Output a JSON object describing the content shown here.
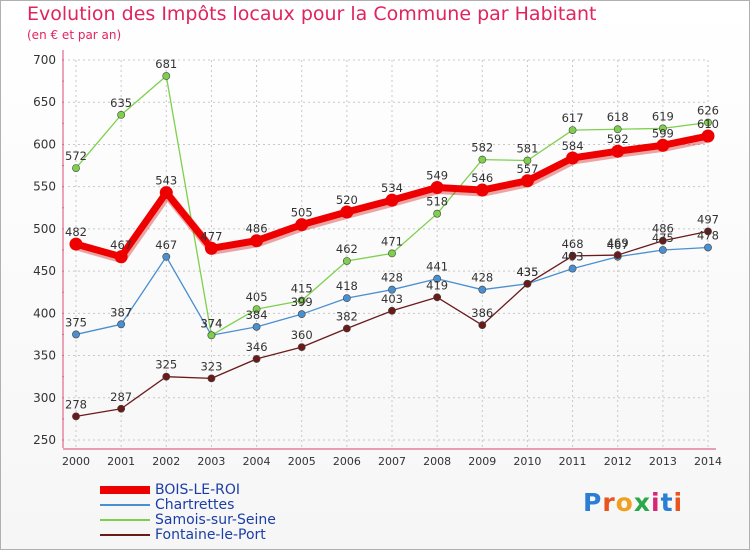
{
  "title": "Evolution des Impôts locaux pour la Commune par Habitant",
  "subtitle": "(en € et par an)",
  "brand": "Proxiti",
  "colors": {
    "title": "#e0245e",
    "grid": "#c8c8c8",
    "axis": "#e06a8a",
    "tick_text": "#333333",
    "label_text": "#333333",
    "legend_text": "#1a3ea6"
  },
  "chart_data": {
    "type": "line",
    "title": "Evolution des Impôts locaux pour la Commune par Habitant",
    "subtitle": "(en € et par an)",
    "xlabel": "",
    "ylabel": "",
    "ylim": [
      250,
      700
    ],
    "yticks": [
      250,
      300,
      350,
      400,
      450,
      500,
      550,
      600,
      650,
      700
    ],
    "categories": [
      "2000",
      "2001",
      "2002",
      "2003",
      "2004",
      "2005",
      "2006",
      "2007",
      "2008",
      "2009",
      "2010",
      "2011",
      "2012",
      "2013",
      "2014"
    ],
    "grid": true,
    "legend_position": "bottom-left",
    "series": [
      {
        "name": "BOIS-LE-ROI",
        "color": "#ee0000",
        "emphasis": true,
        "values": [
          482,
          467,
          543,
          477,
          486,
          505,
          520,
          534,
          549,
          546,
          557,
          584,
          592,
          599,
          610
        ],
        "labels": [
          "482",
          "467",
          "543",
          "477",
          "486",
          "505",
          "520",
          "534",
          "549",
          "546",
          "557",
          "584",
          "592",
          "599",
          "610"
        ]
      },
      {
        "name": "Chartrettes",
        "color": "#4a8fd0",
        "emphasis": false,
        "values": [
          375,
          387,
          467,
          374,
          384,
          399,
          418,
          428,
          441,
          428,
          435,
          453,
          467,
          475,
          478
        ],
        "labels": [
          "375",
          "387",
          "467",
          "374",
          "384",
          "399",
          "418",
          "428",
          "441",
          "428",
          "435",
          "453",
          "467",
          "475",
          "478"
        ]
      },
      {
        "name": "Samois-sur-Seine",
        "color": "#7ed04c",
        "emphasis": false,
        "values": [
          572,
          635,
          681,
          374,
          405,
          415,
          462,
          471,
          518,
          582,
          581,
          617,
          618,
          619,
          626
        ],
        "labels": [
          "572",
          "635",
          "681",
          "374",
          "405",
          "415",
          "462",
          "471",
          "518",
          "582",
          "581",
          "617",
          "618",
          "619",
          "626"
        ]
      },
      {
        "name": "Fontaine-le-Port",
        "color": "#6b1a1a",
        "emphasis": false,
        "values": [
          278,
          287,
          325,
          323,
          346,
          360,
          382,
          403,
          419,
          386,
          435,
          468,
          469,
          486,
          497
        ],
        "labels": [
          "278",
          "287",
          "325",
          "323",
          "346",
          "360",
          "382",
          "403",
          "419",
          "386",
          "435",
          "468",
          "469",
          "486",
          "497"
        ]
      }
    ]
  }
}
